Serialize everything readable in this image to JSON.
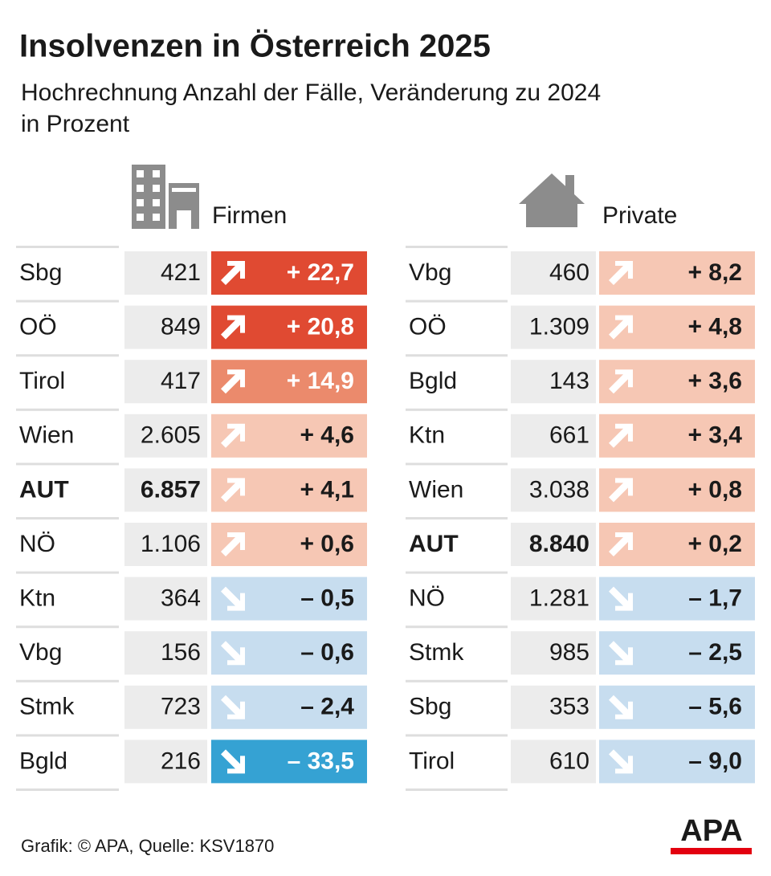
{
  "header": {
    "title": "Insolvenzen in Österreich 2025",
    "subtitle_lines": [
      "Hochrechnung Anzahl der Fälle, Veränderung zu 2024",
      "in Prozent"
    ]
  },
  "tables": [
    {
      "label": "Firmen",
      "emphasis_row": 4,
      "rows": [
        {
          "region": "Sbg",
          "count": "421",
          "change": "+ 22,7",
          "color": "#e04a32"
        },
        {
          "region": "OÖ",
          "count": "849",
          "change": "+ 20,8",
          "color": "#e04a32"
        },
        {
          "region": "Tirol",
          "count": "417",
          "change": "+ 14,9",
          "color": "#eb8a6c"
        },
        {
          "region": "Wien",
          "count": "2.605",
          "change": "+ 4,6",
          "color": "#f6c7b4"
        },
        {
          "region": "AUT",
          "count": "6.857",
          "change": "+ 4,1",
          "color": "#f6c7b4"
        },
        {
          "region": "NÖ",
          "count": "1.106",
          "change": "+ 0,6",
          "color": "#f6c7b4"
        },
        {
          "region": "Ktn",
          "count": "364",
          "change": "– 0,5",
          "color": "#c7ddef"
        },
        {
          "region": "Vbg",
          "count": "156",
          "change": "– 0,6",
          "color": "#c7ddef"
        },
        {
          "region": "Stmk",
          "count": "723",
          "change": "– 2,4",
          "color": "#c7ddef"
        },
        {
          "region": "Bgld",
          "count": "216",
          "change": "– 33,5",
          "color": "#35a2d3"
        }
      ]
    },
    {
      "label": "Private",
      "emphasis_row": 5,
      "rows": [
        {
          "region": "Vbg",
          "count": "460",
          "change": "+ 8,2",
          "color": "#f6c7b4"
        },
        {
          "region": "OÖ",
          "count": "1.309",
          "change": "+ 4,8",
          "color": "#f6c7b4"
        },
        {
          "region": "Bgld",
          "count": "143",
          "change": "+ 3,6",
          "color": "#f6c7b4"
        },
        {
          "region": "Ktn",
          "count": "661",
          "change": "+ 3,4",
          "color": "#f6c7b4"
        },
        {
          "region": "Wien",
          "count": "3.038",
          "change": "+ 0,8",
          "color": "#f6c7b4"
        },
        {
          "region": "AUT",
          "count": "8.840",
          "change": "+ 0,2",
          "color": "#f6c7b4"
        },
        {
          "region": "NÖ",
          "count": "1.281",
          "change": "– 1,7",
          "color": "#c7ddef"
        },
        {
          "region": "Stmk",
          "count": "985",
          "change": "– 2,5",
          "color": "#c7ddef"
        },
        {
          "region": "Sbg",
          "count": "353",
          "change": "– 5,6",
          "color": "#c7ddef"
        },
        {
          "region": "Tirol",
          "count": "610",
          "change": "– 9,0",
          "color": "#c7ddef"
        }
      ]
    }
  ],
  "footer": {
    "source": "Grafik: © APA, Quelle: KSV1870",
    "logo": "APA"
  }
}
